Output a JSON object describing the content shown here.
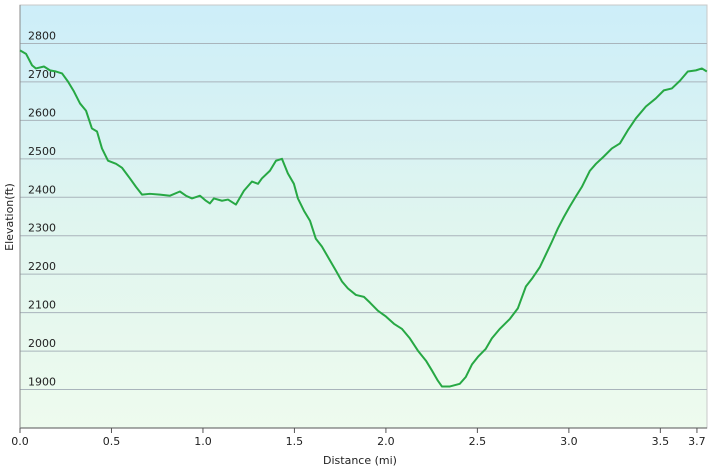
{
  "chart_data": {
    "type": "line",
    "x_label": "Distance  (mi)",
    "y_label": "Elevation(ft)",
    "x": [
      0,
      0.033,
      0.066,
      0.087,
      0.131,
      0.164,
      0.197,
      0.23,
      0.262,
      0.295,
      0.328,
      0.361,
      0.393,
      0.421,
      0.448,
      0.481,
      0.525,
      0.557,
      0.601,
      0.634,
      0.667,
      0.71,
      0.765,
      0.82,
      0.874,
      0.907,
      0.94,
      0.984,
      1.016,
      1.038,
      1.06,
      1.104,
      1.137,
      1.18,
      1.224,
      1.268,
      1.301,
      1.322,
      1.366,
      1.399,
      1.432,
      1.464,
      1.497,
      1.519,
      1.552,
      1.585,
      1.617,
      1.65,
      1.694,
      1.727,
      1.76,
      1.792,
      1.836,
      1.88,
      1.913,
      1.956,
      2.0,
      2.044,
      2.087,
      2.131,
      2.175,
      2.219,
      2.251,
      2.284,
      2.306,
      2.35,
      2.404,
      2.437,
      2.47,
      2.503,
      2.546,
      2.579,
      2.623,
      2.678,
      2.721,
      2.765,
      2.798,
      2.842,
      2.874,
      2.907,
      2.94,
      2.973,
      3.005,
      3.038,
      3.071,
      3.115,
      3.148,
      3.191,
      3.235,
      3.279,
      3.322,
      3.366,
      3.421,
      3.475,
      3.519,
      3.563,
      3.607,
      3.65,
      3.694,
      3.727,
      3.754
    ],
    "values": [
      2782,
      2773,
      2743,
      2735,
      2740,
      2730,
      2727,
      2722,
      2701,
      2675,
      2644,
      2625,
      2579,
      2571,
      2527,
      2495,
      2487,
      2477,
      2449,
      2427,
      2407,
      2409,
      2407,
      2404,
      2415,
      2404,
      2397,
      2404,
      2391,
      2384,
      2397,
      2391,
      2394,
      2381,
      2417,
      2441,
      2435,
      2449,
      2469,
      2495,
      2500,
      2462,
      2435,
      2397,
      2365,
      2339,
      2292,
      2272,
      2236,
      2209,
      2181,
      2163,
      2146,
      2141,
      2126,
      2105,
      2090,
      2071,
      2058,
      2033,
      2001,
      1975,
      1950,
      1923,
      1908,
      1908,
      1915,
      1933,
      1965,
      1985,
      2006,
      2033,
      2058,
      2084,
      2111,
      2168,
      2188,
      2219,
      2251,
      2284,
      2319,
      2349,
      2376,
      2402,
      2427,
      2469,
      2487,
      2506,
      2527,
      2540,
      2574,
      2605,
      2636,
      2657,
      2678,
      2683,
      2703,
      2727,
      2730,
      2735,
      2727
    ],
    "color": "#27a844",
    "xlim": [
      0,
      3.755
    ],
    "ylim": [
      1800,
      2900
    ],
    "xticks": [
      {
        "value": 0,
        "label": "0.0"
      },
      0.5,
      {
        "value": 1,
        "label": "1.0"
      },
      1.5,
      {
        "value": 2,
        "label": "2.0"
      },
      2.5,
      {
        "value": 3,
        "label": "3.0"
      },
      3.5,
      3.7
    ],
    "yticks": [
      1900,
      2000,
      2100,
      2200,
      2300,
      2400,
      2500,
      2600,
      2700,
      2800
    ],
    "grid": true
  }
}
